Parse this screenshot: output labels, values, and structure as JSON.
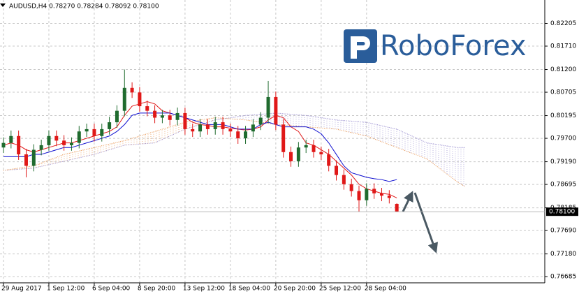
{
  "chart_data": {
    "type": "candlestick",
    "title": "AUDUSD,H4 0.78270 0.78284 0.78092 0.78100",
    "logo": "RoboForex",
    "categories": [
      "29 Aug 2017",
      null,
      null,
      null,
      null,
      null,
      "1 Sep 12:00",
      null,
      null,
      null,
      null,
      null,
      "6 Sep 04:00",
      null,
      null,
      null,
      null,
      null,
      "8 Sep 20:00",
      null,
      null,
      null,
      null,
      null,
      "13 Sep 12:00",
      null,
      null,
      null,
      null,
      null,
      "18 Sep 04:00",
      null,
      null,
      null,
      null,
      null,
      "20 Sep 20:00",
      null,
      null,
      null,
      null,
      null,
      "25 Sep 12:00",
      null,
      null,
      null,
      null,
      null,
      "28 Sep 04:00",
      null,
      null,
      null,
      null
    ],
    "open": [
      0.795,
      0.796,
      0.7975,
      0.7935,
      0.791,
      0.7945,
      0.7955,
      0.7975,
      0.7965,
      0.7955,
      0.796,
      0.7985,
      0.799,
      0.7975,
      0.799,
      0.8005,
      0.803,
      0.808,
      0.807,
      0.804,
      0.803,
      0.8015,
      0.802,
      0.801,
      0.8025,
      0.799,
      0.7985,
      0.8,
      0.799,
      0.8005,
      0.799,
      0.7985,
      0.797,
      0.7985,
      0.8,
      0.8015,
      0.806,
      0.8,
      0.794,
      0.792,
      0.795,
      0.7955,
      0.794,
      0.7935,
      0.791,
      0.789,
      0.787,
      0.7855,
      0.7835,
      0.786,
      0.785,
      0.7845,
      0.7827
    ],
    "high": [
      0.7972,
      0.7987,
      0.7987,
      0.7947,
      0.7957,
      0.7967,
      0.7987,
      0.7987,
      0.7977,
      0.7972,
      0.7997,
      0.8002,
      0.8002,
      0.8002,
      0.8017,
      0.8042,
      0.812,
      0.8092,
      0.8082,
      0.8052,
      0.8042,
      0.8032,
      0.8032,
      0.8037,
      0.8037,
      0.8002,
      0.8012,
      0.8012,
      0.8017,
      0.8017,
      0.8002,
      0.7997,
      0.7997,
      0.8012,
      0.8027,
      0.8095,
      0.8072,
      0.8012,
      0.7952,
      0.7962,
      0.7967,
      0.7967,
      0.7952,
      0.7947,
      0.7922,
      0.7902,
      0.7882,
      0.7867,
      0.7872,
      0.7872,
      0.7862,
      0.7857,
      0.78284
    ],
    "low": [
      0.7938,
      0.7948,
      0.7923,
      0.7885,
      0.7898,
      0.7933,
      0.7943,
      0.7953,
      0.7943,
      0.7943,
      0.7948,
      0.7973,
      0.7963,
      0.7963,
      0.7978,
      0.7993,
      0.8018,
      0.8058,
      0.8028,
      0.8018,
      0.8003,
      0.8003,
      0.7998,
      0.7998,
      0.7978,
      0.7973,
      0.7973,
      0.7978,
      0.7978,
      0.7978,
      0.7973,
      0.7958,
      0.7958,
      0.7973,
      0.7988,
      0.8003,
      0.7988,
      0.7928,
      0.7908,
      0.7908,
      0.7938,
      0.7928,
      0.7923,
      0.7898,
      0.7878,
      0.7858,
      0.7843,
      0.781,
      0.7823,
      0.7838,
      0.7833,
      0.7828,
      0.78092
    ],
    "close": [
      0.796,
      0.7975,
      0.7935,
      0.791,
      0.7945,
      0.7955,
      0.7975,
      0.7965,
      0.7955,
      0.796,
      0.7985,
      0.799,
      0.7975,
      0.799,
      0.8005,
      0.803,
      0.808,
      0.807,
      0.804,
      0.803,
      0.8015,
      0.802,
      0.801,
      0.8025,
      0.799,
      0.7985,
      0.8,
      0.799,
      0.8005,
      0.799,
      0.7985,
      0.797,
      0.7985,
      0.8,
      0.8015,
      0.806,
      0.8,
      0.794,
      0.792,
      0.795,
      0.7955,
      0.794,
      0.7935,
      0.791,
      0.789,
      0.787,
      0.7855,
      0.7835,
      0.786,
      0.785,
      0.7845,
      0.784,
      0.781
    ],
    "up_color": "#1f6b2e",
    "down_color": "#e01818",
    "lines": [
      {
        "color": "#e01818",
        "values": [
          0.7955,
          0.796,
          0.7955,
          0.7945,
          0.794,
          0.7945,
          0.795,
          0.7955,
          0.796,
          0.796,
          0.7965,
          0.797,
          0.7975,
          0.798,
          0.7985,
          0.7995,
          0.802,
          0.804,
          0.8045,
          0.805,
          0.8045,
          0.803,
          0.8025,
          0.802,
          0.8015,
          0.8005,
          0.8,
          0.7998,
          0.7995,
          0.7995,
          0.7992,
          0.799,
          0.7988,
          0.799,
          0.7995,
          0.801,
          0.802,
          0.8015,
          0.7995,
          0.7985,
          0.796,
          0.7955,
          0.7945,
          0.7935,
          0.792,
          0.7905,
          0.789,
          0.787,
          0.786,
          0.7855,
          0.785,
          0.7848,
          0.784
        ]
      },
      {
        "color": "#1010d0",
        "values": [
          0.793,
          0.793,
          0.793,
          0.793,
          0.7935,
          0.7935,
          0.794,
          0.7945,
          0.795,
          0.795,
          0.7955,
          0.796,
          0.7965,
          0.797,
          0.7975,
          0.7985,
          0.8,
          0.802,
          0.8025,
          0.8025,
          0.8025,
          0.8025,
          0.8025,
          0.802,
          0.8015,
          0.801,
          0.8005,
          0.8,
          0.8,
          0.8,
          0.7995,
          0.799,
          0.799,
          0.799,
          0.8,
          0.8005,
          0.8,
          0.7995,
          0.7995,
          0.7995,
          0.7995,
          0.799,
          0.798,
          0.796,
          0.7935,
          0.791,
          0.7895,
          0.789,
          0.7885,
          0.7882,
          0.788,
          0.7876,
          0.788
        ]
      }
    ],
    "cloud": {
      "x": [
        0,
        4,
        8,
        12,
        16,
        20,
        24,
        28,
        32,
        36,
        40,
        44,
        48,
        52,
        56,
        60,
        61
      ],
      "span_a": [
        0.79,
        0.7905,
        0.792,
        0.7935,
        0.7955,
        0.796,
        0.799,
        0.801,
        0.802,
        0.8025,
        0.802,
        0.801,
        0.8005,
        0.799,
        0.796,
        0.795,
        0.795
      ],
      "span_b": [
        0.79,
        0.791,
        0.7935,
        0.795,
        0.7965,
        0.7985,
        0.8005,
        0.8015,
        0.801,
        0.8,
        0.7995,
        0.799,
        0.7975,
        0.795,
        0.7925,
        0.7875,
        0.7865
      ],
      "color_a": "#9a8fd0",
      "color_b": "#e8924a"
    },
    "current_price": {
      "value": 0.781,
      "label": "0.78100"
    },
    "xlim": [
      -0.46,
      71.56
    ],
    "ylim": [
      0.7655,
      0.82715
    ],
    "yticks": [
      0.82205,
      {
        "value": 0.8171,
        "label": "0.81710"
      },
      {
        "value": 0.812,
        "label": "0.81200"
      },
      0.80705,
      0.80195,
      {
        "value": 0.797,
        "label": "0.79700"
      },
      {
        "value": 0.7919,
        "label": "0.79190"
      },
      0.78695,
      0.78185,
      {
        "value": 0.7769,
        "label": "0.77690"
      },
      {
        "value": 0.7718,
        "label": "0.77180"
      },
      0.76685
    ],
    "grid": true
  }
}
